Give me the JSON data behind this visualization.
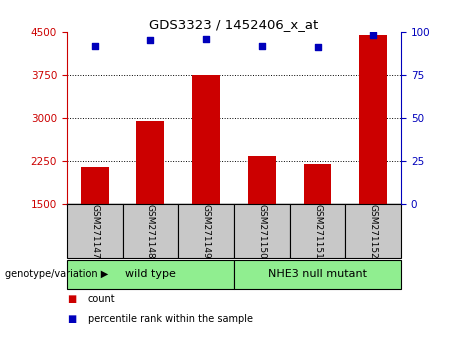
{
  "title": "GDS3323 / 1452406_x_at",
  "samples": [
    "GSM271147",
    "GSM271148",
    "GSM271149",
    "GSM271150",
    "GSM271151",
    "GSM271152"
  ],
  "counts": [
    2150,
    2950,
    3750,
    2350,
    2200,
    4450
  ],
  "percentiles": [
    92,
    95,
    96,
    92,
    91,
    98
  ],
  "ylim_left": [
    1500,
    4500
  ],
  "ylim_right": [
    0,
    100
  ],
  "yticks_left": [
    1500,
    2250,
    3000,
    3750,
    4500
  ],
  "yticks_right": [
    0,
    25,
    50,
    75,
    100
  ],
  "bar_color": "#CC0000",
  "dot_color": "#0000BB",
  "group_box_color": "#C8C8C8",
  "legend_count_label": "count",
  "legend_pct_label": "percentile rank within the sample",
  "genotype_label": "genotype/variation",
  "background_color": "#FFFFFF",
  "grid_color": "#000000",
  "left_axis_color": "#CC0000",
  "right_axis_color": "#0000BB",
  "group1_label": "wild type",
  "group2_label": "NHE3 null mutant",
  "group_color": "#90EE90"
}
